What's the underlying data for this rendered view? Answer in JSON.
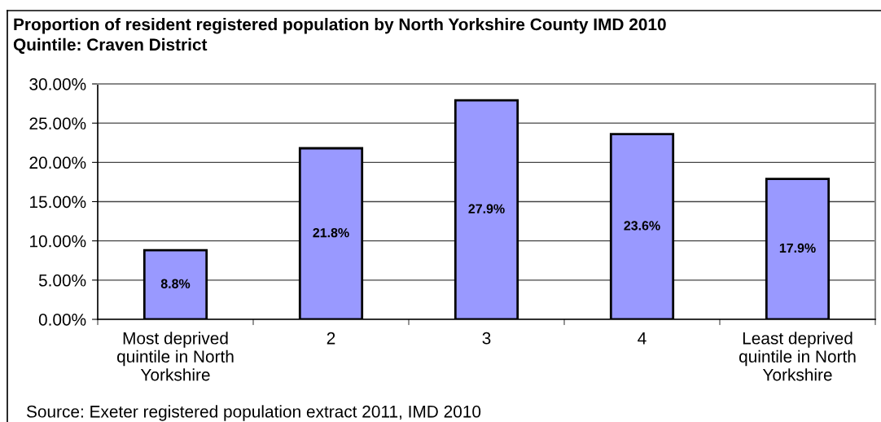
{
  "chart_data": {
    "type": "bar",
    "title": "Proportion of resident registered population by North Yorkshire County IMD 2010\nQuintile: Craven District",
    "categories": [
      "Most deprived\nquintile in North\nYorkshire",
      "2",
      "3",
      "4",
      "Least deprived\nquintile in North\nYorkshire"
    ],
    "values": [
      8.8,
      21.8,
      27.9,
      23.6,
      17.9
    ],
    "color": "#9999ff",
    "value_labels": [
      "8.8%",
      "21.8%",
      "27.9%",
      "23.6%",
      "17.9%"
    ],
    "ylim": [
      0,
      30
    ],
    "yticks": [
      {
        "value": 0,
        "label": "0.00%"
      },
      {
        "value": 5,
        "label": "5.00%"
      },
      {
        "value": 10,
        "label": "10.00%"
      },
      {
        "value": 15,
        "label": "15.00%"
      },
      {
        "value": 20,
        "label": "20.00%"
      },
      {
        "value": 25,
        "label": "25.00%"
      },
      {
        "value": 30,
        "label": "30.00%"
      }
    ],
    "grid": "y",
    "annotations": [
      "Source: Exeter registered population extract 2011, IMD 2010"
    ]
  }
}
